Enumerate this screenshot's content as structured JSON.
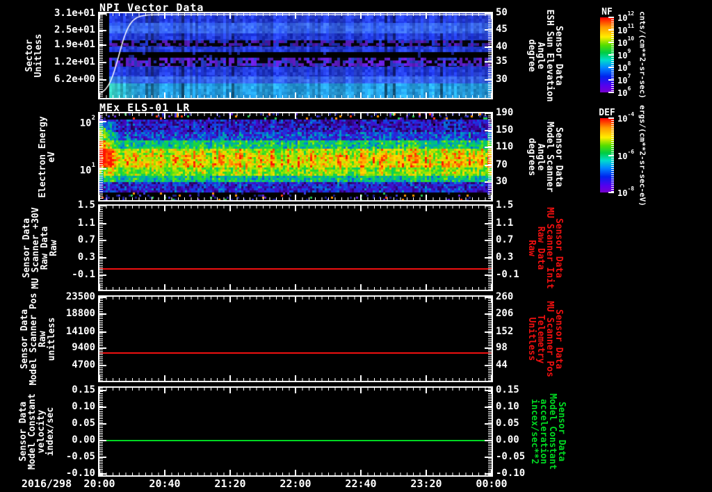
{
  "figure": {
    "background": "#000000",
    "frame_color": "#ffffff",
    "text_color": "#ffffff",
    "red": "#f01010",
    "green": "#00d822"
  },
  "xaxis": {
    "date_label": "2016/298",
    "ticks": [
      "20:00",
      "20:40",
      "21:20",
      "22:00",
      "22:40",
      "23:20",
      "00:00"
    ]
  },
  "panels": [
    {
      "id": "npi",
      "title": "NPI Vector Data",
      "left_label": [
        "Sector",
        "Unitless"
      ],
      "left_ticks": [
        "3.1e+01",
        "2.5e+01",
        "1.9e+01",
        "1.2e+01",
        "6.2e+00"
      ],
      "right_ticks": [
        "50",
        "45",
        "40",
        "35",
        "30"
      ],
      "right_label": [
        "Sensor Data",
        "ESH Sun Elevation",
        "Angle",
        "degree"
      ],
      "right_label_color": "#ffffff"
    },
    {
      "id": "els",
      "title": "MEx ELS-01 LR",
      "left_label": [
        "Electron Energy",
        "eV"
      ],
      "left_ticks": [
        "10^2",
        "10^1"
      ],
      "right_ticks": [
        "190",
        "150",
        "110",
        "70",
        "30"
      ],
      "right_label": [
        "Sensor Data",
        "Model Scanner",
        "Angle",
        "degrees"
      ],
      "right_label_color": "#ffffff"
    },
    {
      "id": "mu-scanner-30v",
      "title": "",
      "left_label": [
        "Sensor Data",
        "MU Scanner +30V",
        "Raw Data",
        "Raw"
      ],
      "left_ticks": [
        "1.5",
        "1.1",
        "0.7",
        "0.3",
        "-0.1"
      ],
      "right_ticks": [
        "1.5",
        "1.1",
        "0.7",
        "0.3",
        "-0.1"
      ],
      "right_label": [
        "Sensor Data",
        "MU Scanner Init",
        "Raw Data",
        "Raw"
      ],
      "right_label_color": "#f01010"
    },
    {
      "id": "model-scanner-pos",
      "title": "",
      "left_label": [
        "Sensor Data",
        "Model Scanner Pos",
        "Raw",
        "unitless"
      ],
      "left_ticks": [
        "23500",
        "18800",
        "14100",
        "9400",
        "4700"
      ],
      "right_ticks": [
        "260",
        "206",
        "152",
        "98",
        "44"
      ],
      "right_label": [
        "Sensor Data",
        "MU Scanner Pos",
        "Telemetry",
        "Unitless"
      ],
      "right_label_color": "#f01010"
    },
    {
      "id": "model-constant",
      "title": "",
      "left_label": [
        "Sensor Data",
        "Model Constant",
        "velocity",
        "index/sec"
      ],
      "left_ticks": [
        "0.15",
        "0.10",
        "0.05",
        "0.00",
        "-0.05",
        "-0.10"
      ],
      "right_ticks": [
        "0.15",
        "0.10",
        "0.05",
        "0.00",
        "-0.05",
        "-0.10"
      ],
      "right_label": [
        "Sensor Data",
        "Model Constant",
        "acceleration",
        "incex/sec**2"
      ],
      "right_label_color": "#00d822"
    }
  ],
  "colorbars": [
    {
      "title": "NF",
      "ticks": [
        "10^12",
        "10^11",
        "10^10",
        "10^9",
        "10^8",
        "10^7",
        "10^6"
      ],
      "units": "cnts/(cm**2-sr-sec)"
    },
    {
      "title": "DEF",
      "ticks": [
        "10^-4",
        "10^-6",
        "10^-8"
      ],
      "units": "ergs/(cm**2-sr-sec-eV)"
    }
  ],
  "chart_data": [
    {
      "type": "heatmap",
      "title": "NPI Vector Data",
      "xlabel": "time 2016/298 20:00 to 2016/299 00:00",
      "ylabel": "Sector Unitless",
      "y_ticks": [
        31,
        25,
        19,
        12,
        6.2
      ],
      "ylim": [
        0,
        32
      ],
      "right_axis": {
        "label": "Sensor Data ESH Sun Elevation Angle degree",
        "ticks": [
          50,
          45,
          40,
          35,
          30
        ]
      },
      "colorbar": {
        "title": "NF",
        "units": "cnts/(cm**2-sr-sec)",
        "range": [
          "1e6",
          "1e12"
        ]
      },
      "overlay_curve": "white sun-elevation trace rising from ~24 deg at 20:00 to ~50 deg by ~20:25, flat at top afterwards",
      "bands": [
        {
          "y0": 0.0,
          "y1": 0.115,
          "style": "blue"
        },
        {
          "y0": 0.115,
          "y1": 0.235,
          "style": "blue-bright"
        },
        {
          "y0": 0.235,
          "y1": 0.32,
          "style": "blue"
        },
        {
          "y0": 0.32,
          "y1": 0.395,
          "style": "dark-speckle"
        },
        {
          "y0": 0.395,
          "y1": 0.46,
          "style": "blue"
        },
        {
          "y0": 0.46,
          "y1": 0.525,
          "style": "black"
        },
        {
          "y0": 0.525,
          "y1": 0.635,
          "style": "purple-speckle"
        },
        {
          "y0": 0.635,
          "y1": 0.745,
          "style": "blue"
        },
        {
          "y0": 0.745,
          "y1": 0.825,
          "style": "blue-bright"
        },
        {
          "y0": 0.825,
          "y1": 1.0,
          "style": "cyan"
        }
      ]
    },
    {
      "type": "heatmap",
      "title": "MEx ELS-01 LR",
      "ylabel": "Electron Energy eV",
      "y_scale": "log",
      "y_ticks": [
        100,
        10
      ],
      "right_axis": {
        "label": "Sensor Data Model Scanner Angle degrees",
        "ticks": [
          190,
          150,
          110,
          70,
          30
        ]
      },
      "colorbar": {
        "title": "DEF",
        "units": "ergs/(cm**2-sr-sec-eV)",
        "range": [
          "1e-8",
          "1e-4"
        ]
      },
      "hotspot": "orange-red flux enhancement at left edge (~20:00-20:06) between ~8 and ~100 eV",
      "profile": [
        {
          "y0": 0.0,
          "y1": 0.055,
          "level": 0.04
        },
        {
          "y0": 0.055,
          "y1": 0.2,
          "level": 0.22
        },
        {
          "y0": 0.2,
          "y1": 0.3,
          "level": 0.3
        },
        {
          "y0": 0.3,
          "y1": 0.4,
          "level": 0.52
        },
        {
          "y0": 0.4,
          "y1": 0.48,
          "level": 0.74
        },
        {
          "y0": 0.48,
          "y1": 0.62,
          "level": 0.8
        },
        {
          "y0": 0.62,
          "y1": 0.7,
          "level": 0.68
        },
        {
          "y0": 0.7,
          "y1": 0.78,
          "level": 0.5
        },
        {
          "y0": 0.78,
          "y1": 0.9,
          "level": 0.24
        },
        {
          "y0": 0.9,
          "y1": 1.0,
          "level": 0.03
        }
      ]
    },
    {
      "type": "line",
      "ylabel": "Sensor Data MU Scanner +30V Raw Data Raw",
      "ylim": [
        -0.5,
        1.5
      ],
      "y_ticks": [
        1.5,
        1.1,
        0.7,
        0.3,
        -0.1
      ],
      "series": [
        {
          "name": "Sensor Data MU Scanner Init Raw Data Raw",
          "color": "#f01010",
          "shape": "constant",
          "value": 0.0
        }
      ]
    },
    {
      "type": "line",
      "ylabel": "Sensor Data Model Scanner Pos Raw unitless",
      "ylim": [
        0,
        23500
      ],
      "y_ticks": [
        23500,
        18800,
        14100,
        9400,
        4700
      ],
      "right_ticks": [
        260,
        206,
        152,
        98,
        44
      ],
      "series": [
        {
          "name": "Sensor Data MU Scanner Pos Telemetry Unitless",
          "color": "#f01010",
          "shape": "constant",
          "value": 8200
        }
      ]
    },
    {
      "type": "line",
      "ylabel": "Sensor Data Model Constant velocity index/sec",
      "ylim": [
        -0.1,
        0.15
      ],
      "y_ticks": [
        0.15,
        0.1,
        0.05,
        0.0,
        -0.05,
        -0.1
      ],
      "series": [
        {
          "name": "Sensor Data Model Constant acceleration incex/sec**2",
          "color": "#00d822",
          "shape": "constant",
          "value": 0.0
        }
      ]
    }
  ]
}
